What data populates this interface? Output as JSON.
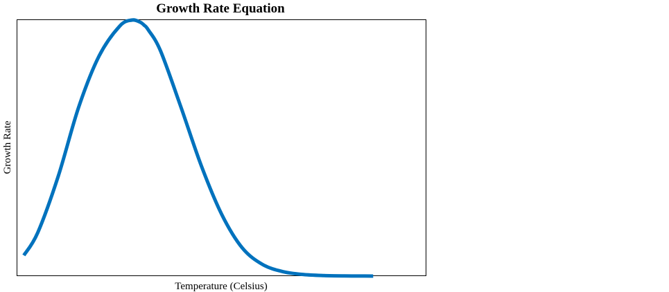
{
  "chart_data": {
    "type": "line",
    "title": "Growth Rate Equation",
    "xlabel": "Temperature (Celsius)",
    "ylabel": "Growth Rate",
    "grid": false,
    "legend": "none",
    "x_ticks_shown": false,
    "y_ticks_shown": false,
    "colors": {
      "series": "#0072BD",
      "frame": "#000000",
      "background": "#FFFFFF"
    },
    "xlim": [
      0,
      1
    ],
    "ylim": [
      0,
      1
    ],
    "series": [
      {
        "x": [
          0.016,
          0.05,
          0.1,
          0.15,
          0.2,
          0.25,
          0.28,
          0.3,
          0.31,
          0.32,
          0.35,
          0.4,
          0.45,
          0.5,
          0.55,
          0.6,
          0.65,
          0.7,
          0.75,
          0.8,
          0.85,
          0.87
        ],
        "values": [
          0.081,
          0.17,
          0.39,
          0.66,
          0.86,
          0.976,
          1.0,
          0.992,
          0.98,
          0.962,
          0.88,
          0.66,
          0.43,
          0.24,
          0.11,
          0.045,
          0.017,
          0.006,
          0.002,
          0.0006,
          0.0002,
          0.0001
        ]
      }
    ]
  }
}
